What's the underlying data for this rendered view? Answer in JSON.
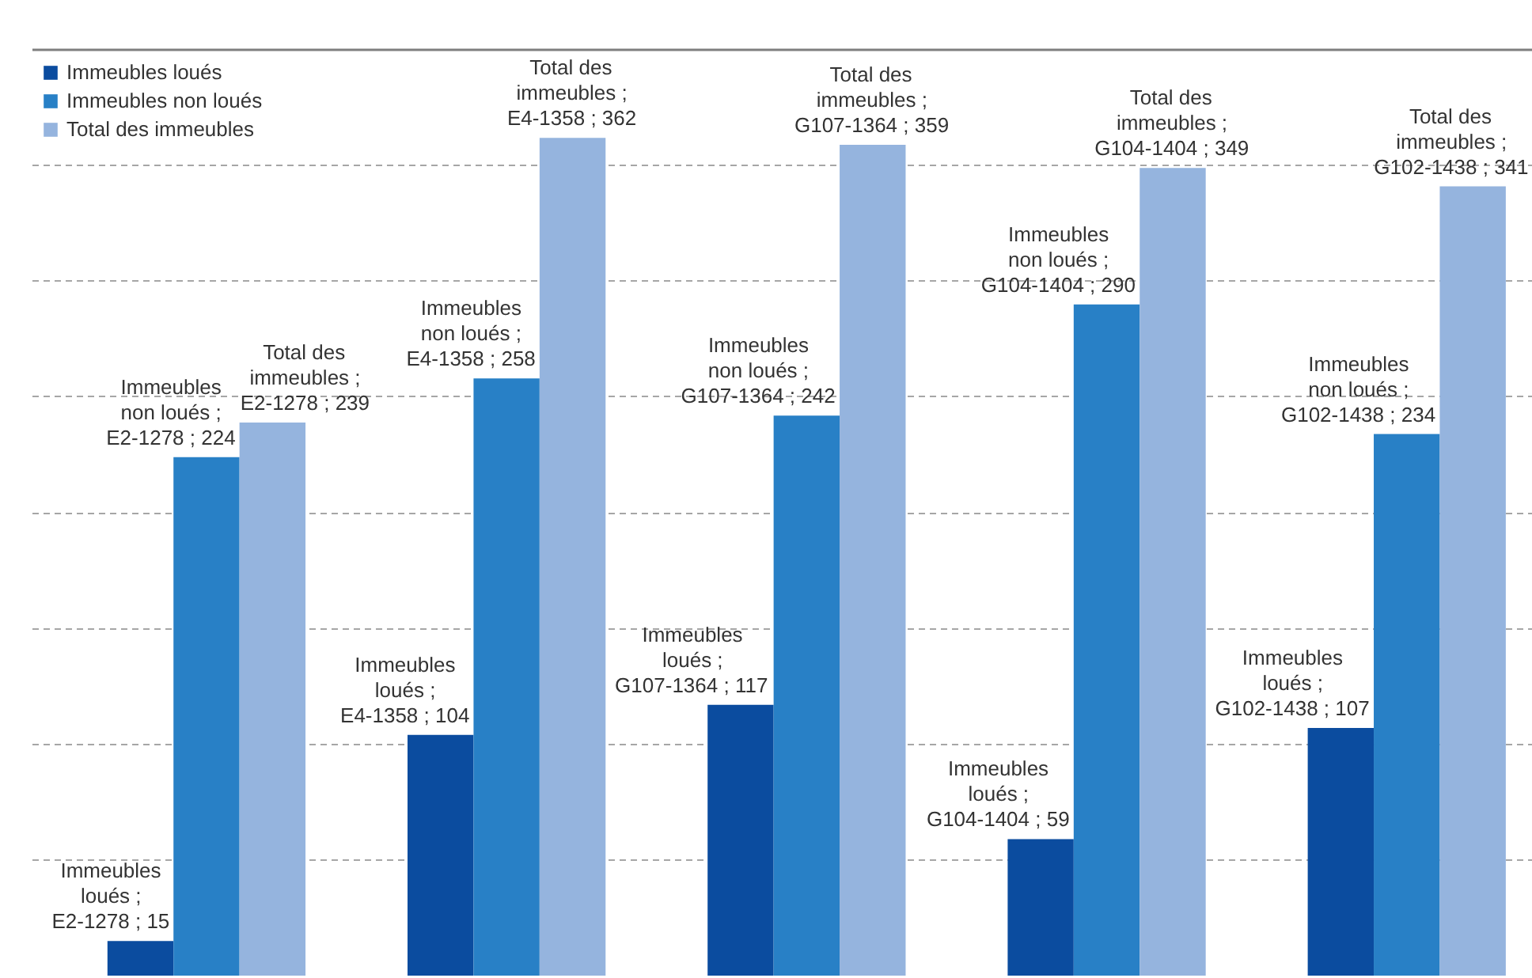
{
  "chart_data": {
    "type": "bar",
    "categories": [
      null,
      null,
      null,
      null,
      null
    ],
    "series": [
      {
        "name": "Immeubles loués",
        "color": "#0b4c9f",
        "values": [
          15,
          104,
          117,
          59,
          107
        ],
        "value_labels": [
          "Immeubles loués ; E2-1278 ; 15",
          "Immeubles loués ; E4-1358 ; 104",
          "Immeubles loués ; G107-1364 ; 117",
          "Immeubles loués ; G104-1404 ; 59",
          "Immeubles loués ; G102-1438 ; 107"
        ]
      },
      {
        "name": "Immeubles non loués",
        "color": "#2880c6",
        "values": [
          224,
          258,
          242,
          290,
          234
        ],
        "value_labels": [
          "Immeubles non loués ; E2-1278 ; 224",
          "Immeubles non loués ; E4-1358 ; 258",
          "Immeubles non loués ; G107-1364 ; 242",
          "Immeubles non loués ; G104-1404 ; 290",
          "Immeubles non loués ; G102-1438 ; 234"
        ]
      },
      {
        "name": "Total des immeubles",
        "color": "#95b4de",
        "values": [
          239,
          362,
          359,
          349,
          341
        ],
        "value_labels": [
          "Total des immeubles ; E2-1278 ; 239",
          "Total des immeubles ; E4-1358 ; 362",
          "Total des immeubles ; G107-1364 ; 359",
          "Total des immeubles ; G104-1404 ; 349",
          "Total des immeubles ; G102-1438 ; 341"
        ]
      }
    ],
    "ylim": [
      0,
      400
    ],
    "yticks": [
      {
        "value": 50,
        "label": null
      },
      {
        "value": 100,
        "label": null
      },
      {
        "value": 150,
        "label": null
      },
      {
        "value": 200,
        "label": null
      },
      {
        "value": 250,
        "label": null
      },
      {
        "value": 300,
        "label": null
      },
      {
        "value": 350,
        "label": null
      },
      {
        "value": 400,
        "label": null
      }
    ],
    "grid": "y",
    "legend": "top left",
    "tick_labels": false
  }
}
